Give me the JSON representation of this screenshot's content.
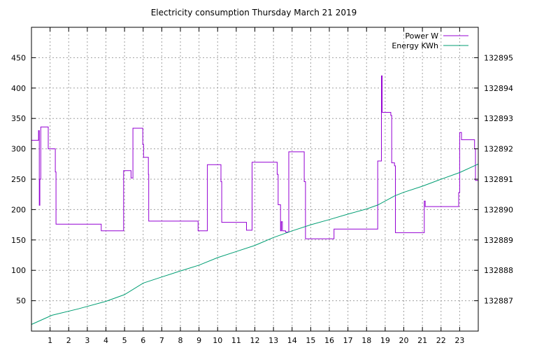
{
  "chart_data": {
    "type": "line",
    "title": "Electricity consumption Thursday March 21 2019",
    "xlabel": "",
    "ylabel": "",
    "xlim": [
      0,
      24
    ],
    "ylim": [
      0,
      500
    ],
    "y2lim": [
      132886,
      132896
    ],
    "x_ticks": [
      "1",
      "2",
      "3",
      "4",
      "5",
      "6",
      "7",
      "8",
      "9",
      "10",
      "11",
      "12",
      "13",
      "14",
      "15",
      "16",
      "17",
      "18",
      "19",
      "20",
      "21",
      "22",
      "23"
    ],
    "y_ticks": [
      "50",
      "100",
      "150",
      "200",
      "250",
      "300",
      "350",
      "400",
      "450"
    ],
    "y2_ticks": [
      "132887",
      "132888",
      "132889",
      "132890",
      "132891",
      "132892",
      "132893",
      "132894",
      "132895"
    ],
    "grid": true,
    "legend_position": "top-right",
    "series": [
      {
        "name": "Power W",
        "axis": "left",
        "color": "#9400d3",
        "step": true,
        "x": [
          0,
          0.38,
          0.42,
          0.45,
          0.5,
          0.9,
          1.28,
          1.32,
          3.75,
          4.95,
          5.35,
          5.45,
          5.98,
          6.02,
          6.28,
          6.3,
          8.95,
          9.45,
          10.18,
          10.22,
          11.55,
          11.85,
          13.2,
          13.25,
          13.38,
          13.42,
          13.48,
          13.65,
          13.82,
          14.65,
          14.72,
          16.25,
          18.6,
          18.8,
          18.84,
          19.3,
          19.35,
          19.5,
          19.55,
          21.1,
          21.15,
          22.95,
          23.0,
          23.1,
          23.8,
          23.85,
          24
        ],
        "y": [
          314,
          330,
          207,
          250,
          336,
          300,
          262,
          176,
          165,
          264,
          252,
          334,
          307,
          286,
          258,
          181,
          165,
          274,
          246,
          179,
          166,
          278,
          258,
          208,
          165,
          180,
          165,
          163,
          295,
          246,
          152,
          168,
          280,
          420,
          360,
          355,
          277,
          272,
          162,
          214,
          205,
          228,
          327,
          315,
          300,
          248,
          247
        ]
      },
      {
        "name": "Energy KWh",
        "axis": "right",
        "color": "#009e73",
        "step": false,
        "x": [
          0,
          1.1,
          2.5,
          4,
          5,
          6,
          7,
          8,
          9,
          10,
          11,
          12,
          13,
          14,
          15,
          16,
          17,
          18,
          18.6,
          19,
          19.5,
          20,
          21,
          22,
          23,
          24
        ],
        "y": [
          132886.22,
          132886.52,
          132886.73,
          132886.98,
          132887.2,
          132887.58,
          132887.78,
          132887.98,
          132888.17,
          132888.42,
          132888.62,
          132888.82,
          132889.08,
          132889.3,
          132889.5,
          132889.67,
          132889.85,
          132890.02,
          132890.15,
          132890.28,
          132890.45,
          132890.57,
          132890.77,
          132891.0,
          132891.22,
          132891.5
        ]
      }
    ]
  }
}
